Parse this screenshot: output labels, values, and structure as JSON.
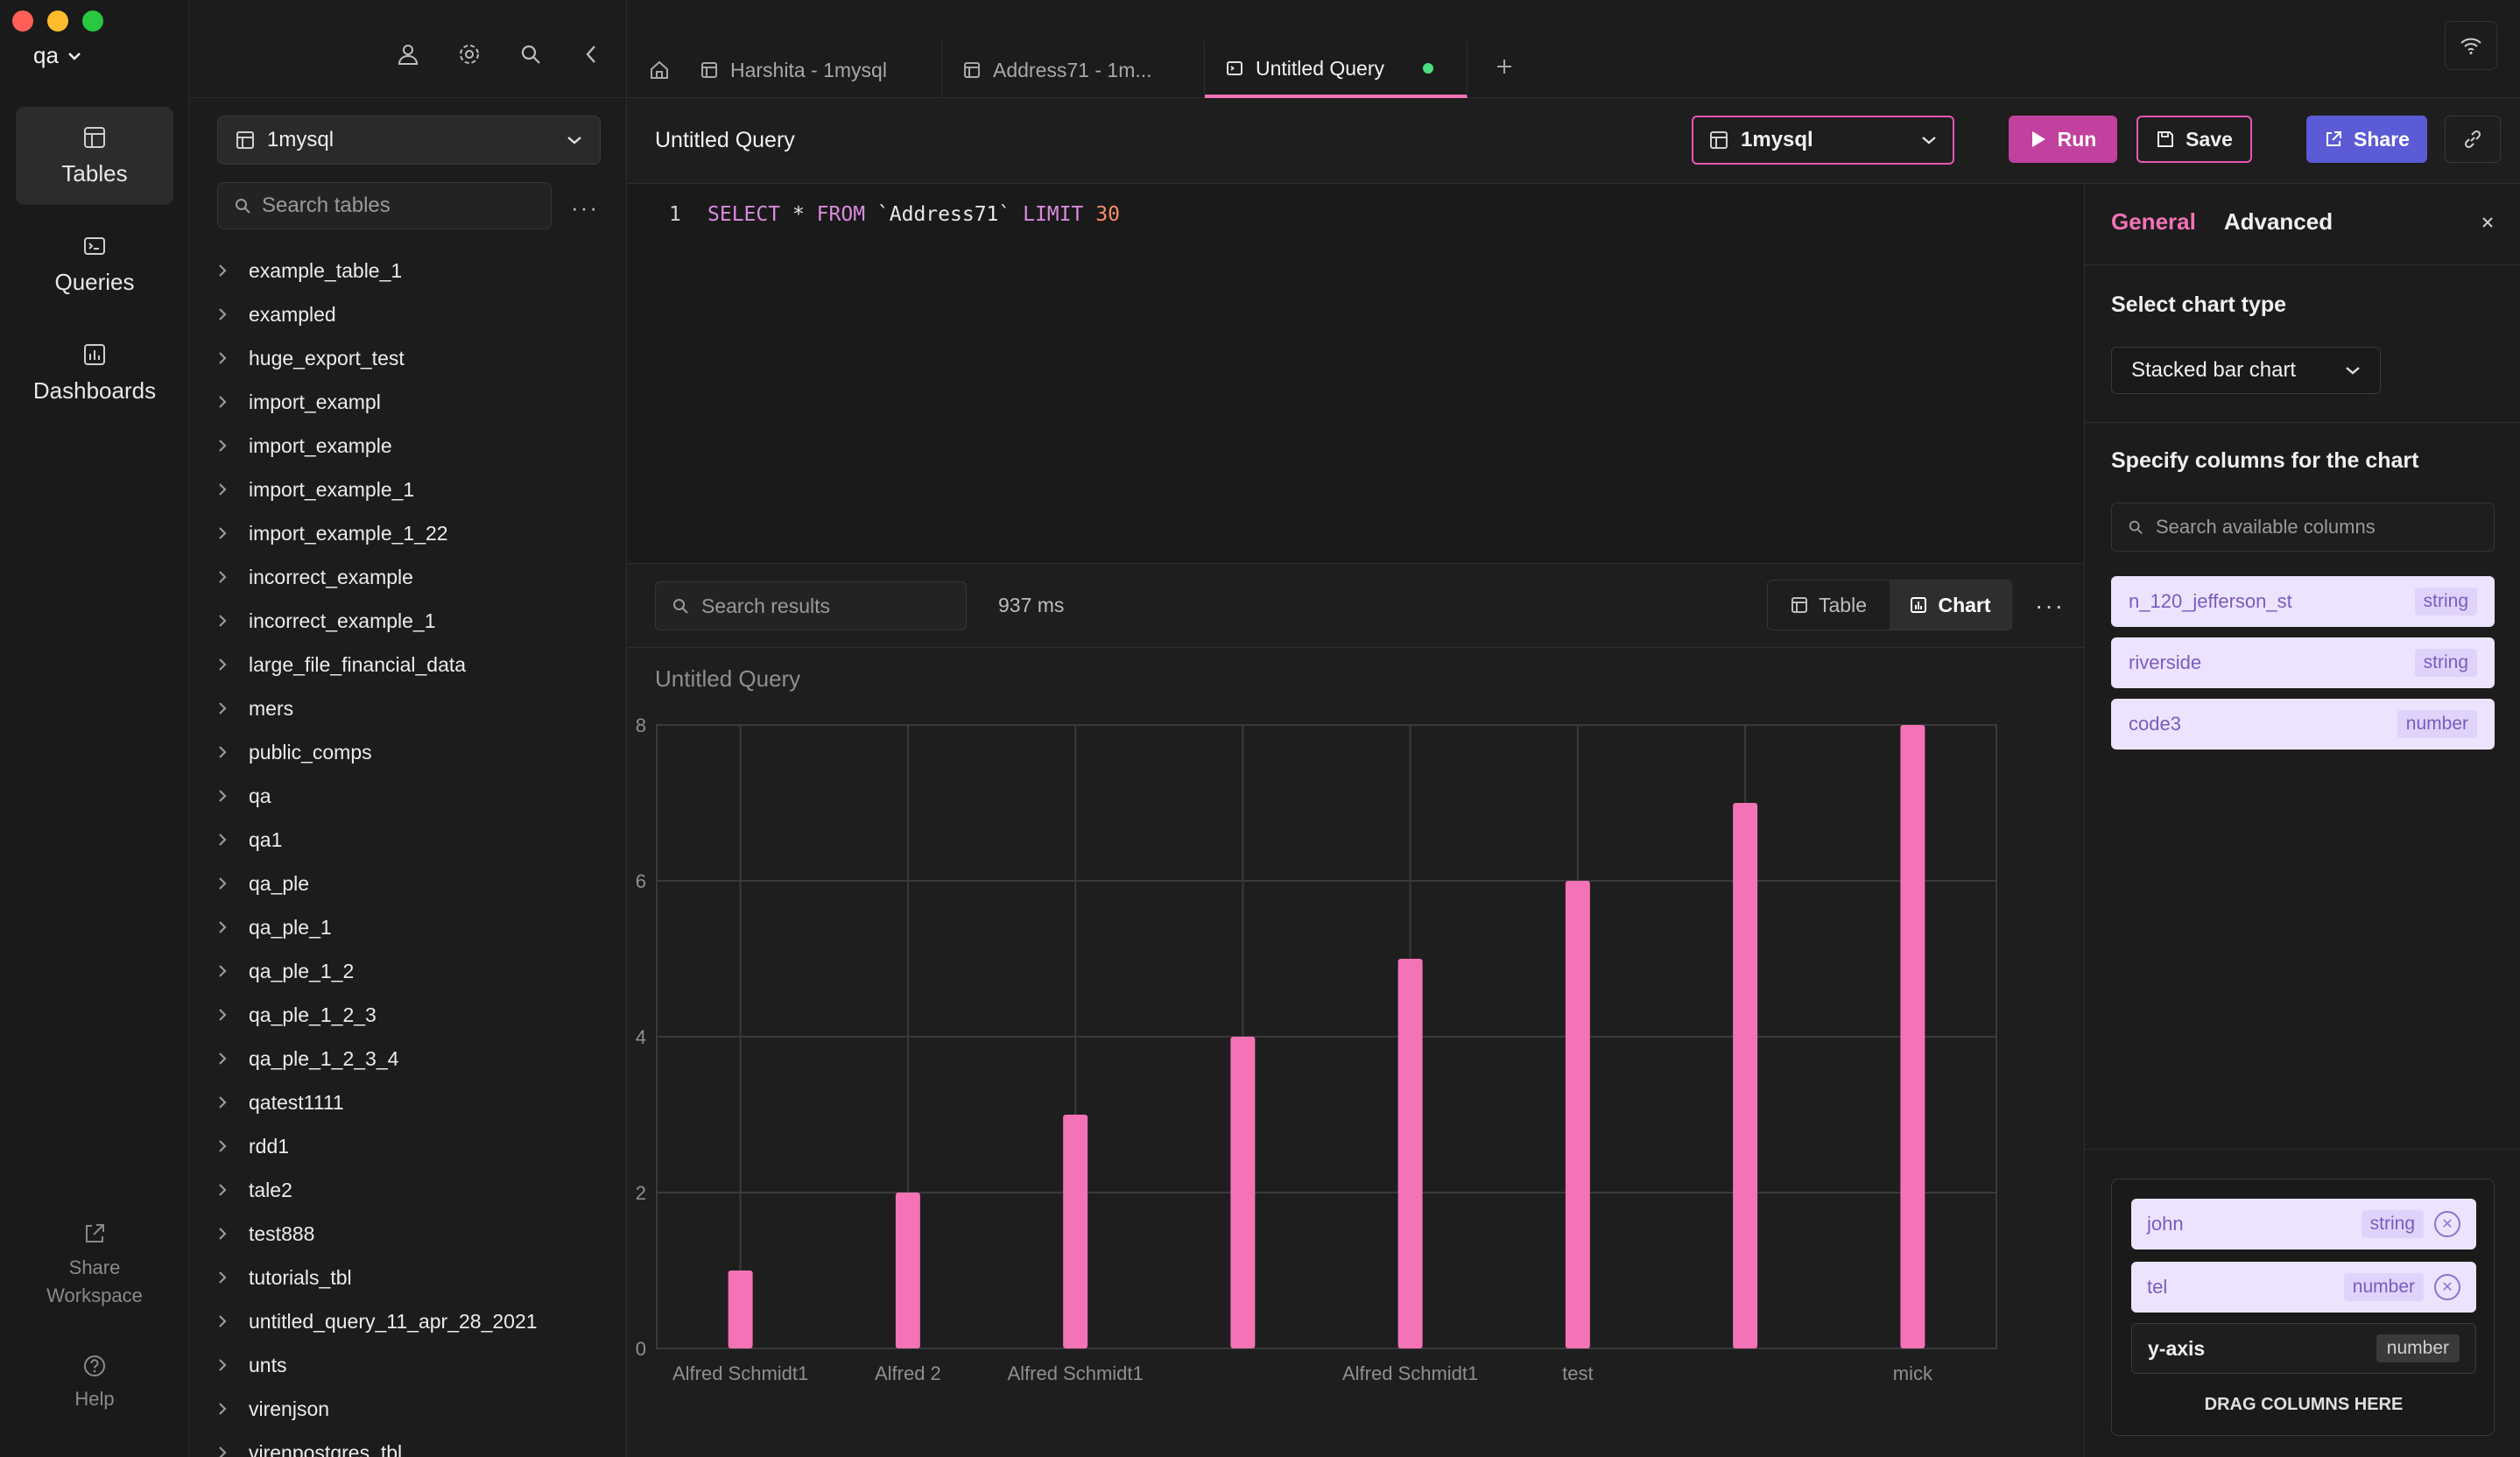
{
  "colors": {
    "accent": "#f472b6",
    "bar": "#f472b6",
    "run": "#c2419e",
    "share": "#5b5bd6",
    "status_dot": "#4ade80"
  },
  "workspace": {
    "name": "qa"
  },
  "rail": {
    "items": [
      {
        "label": "Tables",
        "icon": "table-icon"
      },
      {
        "label": "Queries",
        "icon": "terminal-icon"
      },
      {
        "label": "Dashboards",
        "icon": "chart-icon"
      }
    ],
    "share_workspace": "Share Workspace",
    "help": "Help"
  },
  "sidebar": {
    "database": "1mysql",
    "search_placeholder": "Search tables",
    "tables": [
      "example_table_1",
      "exampled",
      "huge_export_test",
      "import_exampl",
      "import_example",
      "import_example_1",
      "import_example_1_22",
      "incorrect_example",
      "incorrect_example_1",
      "large_file_financial_data",
      "mers",
      "public_comps",
      "qa",
      "qa1",
      "qa_ple",
      "qa_ple_1",
      "qa_ple_1_2",
      "qa_ple_1_2_3",
      "qa_ple_1_2_3_4",
      "qatest1111",
      "rdd1",
      "tale2",
      "test888",
      "tutorials_tbl",
      "untitled_query_11_apr_28_2021",
      "unts",
      "virenjson",
      "virenpostgres_tbl"
    ]
  },
  "tabs": [
    {
      "label": "Harshita - 1mysql"
    },
    {
      "label": "Address71 - 1m..."
    },
    {
      "label": "Untitled Query"
    }
  ],
  "query": {
    "title": "Untitled Query",
    "connection": "1mysql",
    "run_label": "Run",
    "save_label": "Save",
    "share_label": "Share",
    "line_number": "1",
    "sql": {
      "kw1": "SELECT",
      "star": "*",
      "kw2": "FROM",
      "table": "`Address71`",
      "kw3": "LIMIT",
      "limit": "30"
    }
  },
  "results": {
    "search_placeholder": "Search results",
    "elapsed": "937 ms",
    "view_table": "Table",
    "view_chart": "Chart"
  },
  "chart_data": {
    "type": "bar",
    "title": "Untitled Query",
    "categories": [
      "Alfred Schmidt1",
      "Alfred 2",
      "Alfred Schmidt1",
      "",
      "Alfred Schmidt1",
      "test",
      "",
      "mick"
    ],
    "values": [
      1,
      2,
      3,
      4,
      5,
      6,
      7,
      8
    ],
    "ylim": [
      0,
      8
    ],
    "yticks": [
      0,
      2,
      4,
      6,
      8
    ],
    "grid": true
  },
  "panel": {
    "tab_general": "General",
    "tab_advanced": "Advanced",
    "chart_type_label": "Select chart type",
    "chart_type": "Stacked bar chart",
    "columns_label": "Specify columns for the chart",
    "columns_search_placeholder": "Search available columns",
    "columns": [
      {
        "name": "n_120_jefferson_st",
        "type": "string"
      },
      {
        "name": "riverside",
        "type": "string"
      },
      {
        "name": "code3",
        "type": "number"
      }
    ],
    "selected": [
      {
        "name": "john",
        "type": "string"
      },
      {
        "name": "tel",
        "type": "number"
      }
    ],
    "y_axis": {
      "name": "y-axis",
      "type": "number"
    },
    "drop_hint": "DRAG COLUMNS HERE"
  }
}
